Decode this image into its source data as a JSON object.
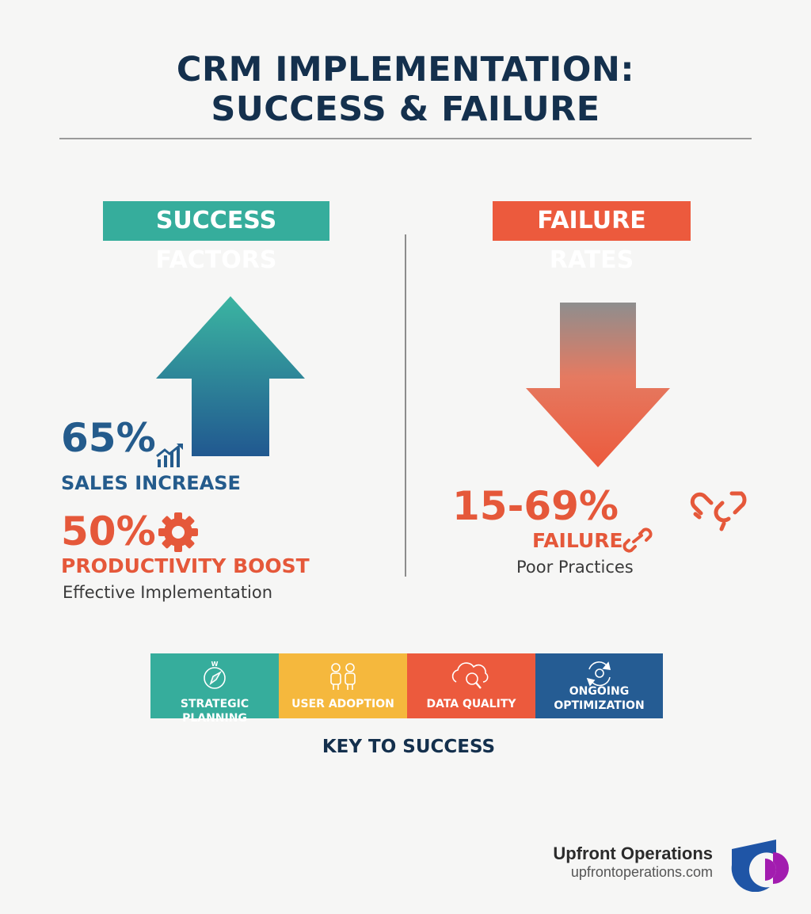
{
  "title": {
    "line1": "CRM IMPLEMENTATION:",
    "line2": "SUCCESS & FAILURE"
  },
  "success": {
    "heading": "SUCCESS FACTORS",
    "stat1": {
      "value": "65%",
      "label": "SALES INCREASE",
      "icon": "trend-chart-icon"
    },
    "stat2": {
      "value": "50%",
      "label": "PRODUCTIVITY BOOST",
      "icon": "gear-icon"
    },
    "caption": "Effective Implementation",
    "arrow_icon": "up-arrow-icon"
  },
  "failure": {
    "heading": "FAILURE RATES",
    "stat": {
      "value": "15-69%",
      "label": "FAILURE",
      "icon": "broken-link-icon"
    },
    "caption": "Poor Practices",
    "arrow_icon": "down-arrow-icon"
  },
  "keys": {
    "items": [
      {
        "label": "STRATEGIC PLANNING",
        "color": "#36ad9c",
        "icon": "compass-icon"
      },
      {
        "label": "USER ADOPTION",
        "color": "#f5b83d",
        "icon": "users-icon"
      },
      {
        "label": "DATA QUALITY",
        "color": "#ec5a3d",
        "icon": "cloud-search-icon"
      },
      {
        "label_line1": "ONGOING",
        "label_line2": "OPTIMIZATION",
        "color": "#255c93",
        "icon": "cycle-gear-icon"
      }
    ],
    "caption": "KEY TO SUCCESS"
  },
  "brand": {
    "name": "Upfront Operations",
    "url": "upfrontoperations.com",
    "colors": {
      "blue": "#1f55a6",
      "magenta": "#a21caf"
    }
  },
  "colors": {
    "teal": "#36ad9c",
    "orange": "#ec5a3d",
    "navy": "#14304d",
    "blue": "#245b8c"
  }
}
